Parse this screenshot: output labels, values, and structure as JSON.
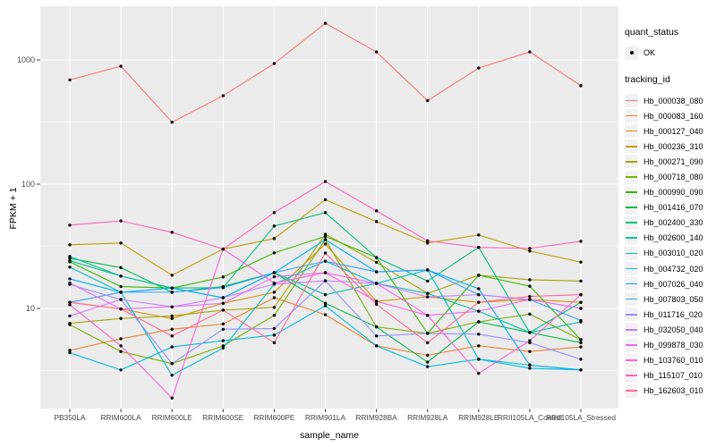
{
  "chart_data": {
    "type": "line",
    "title": "",
    "xlabel": "sample_name",
    "ylabel": "FPKM + 1",
    "y_scale": "log10",
    "y_ticks": [
      10,
      100,
      1000
    ],
    "ylim_log": [
      1.56,
      2700
    ],
    "grid": "on",
    "panel_bg": "#EBEBEB",
    "grid_color": "#FFFFFF",
    "point_color": "#0a0a0a",
    "tick_label_color": "#4D4D4D",
    "legend": {
      "position": "right",
      "quant_status_title": "quant_status",
      "quant_status_items": [
        {
          "label": "OK",
          "symbol": "point",
          "color": "#000000"
        }
      ],
      "tracking_id_title": "tracking_id"
    },
    "categories": [
      "PB350LA",
      "RRIM600LA",
      "RRIM600LE",
      "RRIM600SE",
      "RRIM600PE",
      "RRIM901LA",
      "RRIM928BA",
      "RRIM928LA",
      "RRIM928LE",
      "RRII105LA_Control",
      "RRII105LA_Stressed"
    ],
    "series": [
      {
        "name": "Hb_000038_080",
        "color": "#F8766D",
        "values": [
          690,
          890,
          315,
          515,
          935,
          1970,
          1160,
          470,
          860,
          1160,
          620
        ]
      },
      {
        "name": "Hb_000083_160",
        "color": "#EA8331",
        "values": [
          4.6,
          5.7,
          6.8,
          7.5,
          12.2,
          8.9,
          5.0,
          4.2,
          5.0,
          4.5,
          4.9
        ]
      },
      {
        "name": "Hb_000127_040",
        "color": "#D89000",
        "values": [
          11.2,
          9.9,
          8.3,
          11.0,
          13.5,
          33.0,
          11.4,
          12.4,
          11.2,
          11.8,
          11.2
        ]
      },
      {
        "name": "Hb_000236_310",
        "color": "#C09B00",
        "values": [
          32.5,
          33.6,
          18.5,
          30.0,
          36.5,
          75.0,
          50.0,
          33.6,
          39.0,
          29.0,
          23.6
        ]
      },
      {
        "name": "Hb_000271_090",
        "color": "#A3A500",
        "values": [
          7.6,
          8.3,
          8.7,
          9.7,
          10.2,
          39.5,
          23.5,
          13.2,
          18.5,
          17.0,
          16.6
        ]
      },
      {
        "name": "Hb_000718_080",
        "color": "#7CAE00",
        "values": [
          7.4,
          4.5,
          3.6,
          5.0,
          8.8,
          35.8,
          7.1,
          6.3,
          7.8,
          9.0,
          5.6
        ]
      },
      {
        "name": "Hb_000990_090",
        "color": "#39B600",
        "values": [
          23.7,
          15.0,
          14.6,
          17.9,
          28.0,
          38.0,
          25.7,
          6.3,
          18.5,
          15.1,
          5.6
        ]
      },
      {
        "name": "Hb_001416_070",
        "color": "#00BB4E",
        "values": [
          25.3,
          21.3,
          13.5,
          15.0,
          19.4,
          11.0,
          7.1,
          3.7,
          7.8,
          6.4,
          5.3
        ]
      },
      {
        "name": "Hb_002400_330",
        "color": "#00BF7D",
        "values": [
          24.2,
          18.2,
          14.6,
          14.7,
          46.0,
          59.0,
          25.7,
          16.6,
          31.0,
          6.4,
          11.2
        ]
      },
      {
        "name": "Hb_002600_140",
        "color": "#00C1A3",
        "values": [
          26.2,
          18.2,
          14.6,
          12.2,
          19.4,
          12.9,
          15.9,
          13.2,
          9.5,
          6.4,
          7.8
        ]
      },
      {
        "name": "Hb_003010_020",
        "color": "#00BFC4",
        "values": [
          21.5,
          13.5,
          2.9,
          4.8,
          15.7,
          24.0,
          15.9,
          20.4,
          3.9,
          3.5,
          3.2
        ]
      },
      {
        "name": "Hb_004732_020",
        "color": "#00BAE0",
        "values": [
          4.4,
          3.2,
          4.9,
          5.5,
          6.1,
          10.5,
          5.0,
          3.4,
          3.9,
          3.3,
          3.2
        ]
      },
      {
        "name": "Hb_007026_040",
        "color": "#00B0F6",
        "values": [
          17.3,
          13.5,
          14.6,
          12.2,
          19.4,
          35.8,
          19.7,
          20.4,
          14.4,
          3.5,
          3.2
        ]
      },
      {
        "name": "Hb_007803_050",
        "color": "#35A2FF",
        "values": [
          11.2,
          13.5,
          13.5,
          14.7,
          19.4,
          24.0,
          19.7,
          20.4,
          12.9,
          11.8,
          8.0
        ]
      },
      {
        "name": "Hb_011716_020",
        "color": "#9590FF",
        "values": [
          15.6,
          11.8,
          3.6,
          6.8,
          6.9,
          16.7,
          6.0,
          6.3,
          6.2,
          5.3,
          3.9
        ]
      },
      {
        "name": "Hb_032050_040",
        "color": "#C77CFF",
        "values": [
          8.7,
          11.8,
          10.3,
          12.2,
          15.7,
          16.7,
          15.9,
          12.4,
          12.9,
          11.8,
          10.0
        ]
      },
      {
        "name": "Hb_099878_030",
        "color": "#E76BF3",
        "values": [
          16.0,
          9.9,
          10.3,
          11.0,
          18.0,
          19.4,
          15.9,
          8.8,
          9.5,
          11.8,
          10.0
        ]
      },
      {
        "name": "Hb_103760_010",
        "color": "#FA62DB",
        "values": [
          10.7,
          5.0,
          1.9,
          30.0,
          16.0,
          19.4,
          11.4,
          8.8,
          3.0,
          5.5,
          12.9
        ]
      },
      {
        "name": "Hb_115107_010",
        "color": "#FF62BC",
        "values": [
          46.8,
          50.6,
          41.0,
          30.0,
          59.0,
          105.0,
          61.0,
          35.0,
          31.0,
          30.4,
          34.7
        ]
      },
      {
        "name": "Hb_162603_010",
        "color": "#FF6A98",
        "values": [
          11.2,
          9.9,
          6.0,
          9.7,
          5.3,
          27.9,
          10.8,
          5.3,
          11.2,
          12.5,
          12.9
        ]
      }
    ]
  }
}
